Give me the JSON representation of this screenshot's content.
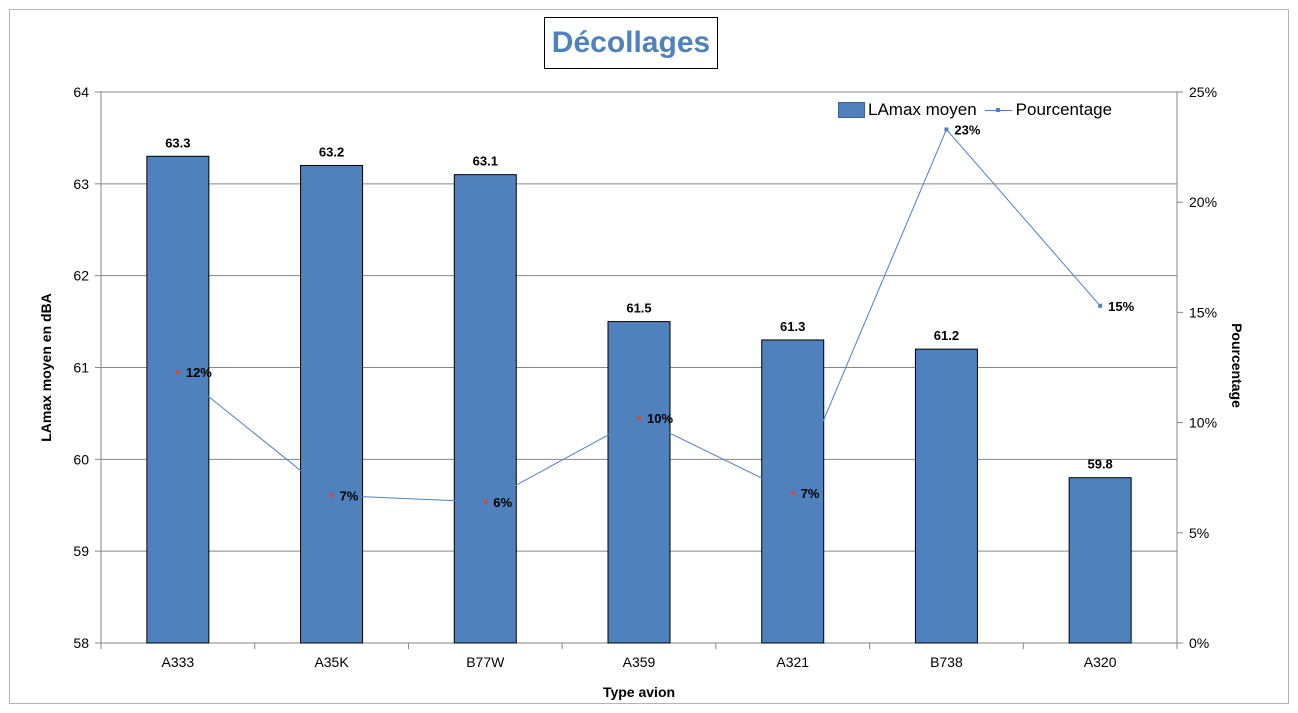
{
  "chart_data": {
    "type": "bar",
    "title": "Décollages",
    "xlabel": "Type avion",
    "ylabel": "LAmax moyen en dBA",
    "y2label": "Pourcentage",
    "categories": [
      "A333",
      "A35K",
      "B77W",
      "A359",
      "A321",
      "B738",
      "A320"
    ],
    "ylim": [
      58,
      64
    ],
    "yticks": [
      "58",
      "59",
      "60",
      "61",
      "62",
      "63",
      "64"
    ],
    "y2lim": [
      0,
      25
    ],
    "y2ticks": [
      "0%",
      "5%",
      "10%",
      "15%",
      "20%",
      "25%"
    ],
    "grid": true,
    "legend_position": "top-right",
    "series": [
      {
        "name": "LAmax moyen",
        "type": "bar",
        "axis": "left",
        "color": "#4f81bd",
        "values": [
          63.3,
          63.2,
          63.1,
          61.5,
          61.3,
          61.2,
          59.8
        ],
        "labels": [
          "63.3",
          "63.2",
          "63.1",
          "61.5",
          "61.3",
          "61.2",
          "59.8"
        ]
      },
      {
        "name": "Pourcentage",
        "type": "line",
        "axis": "right",
        "color": "#4f81bd",
        "values": [
          12.3,
          6.7,
          6.4,
          10.2,
          6.8,
          23.3,
          15.3
        ],
        "labels": [
          "12%",
          "7%",
          "6%",
          "10%",
          "7%",
          "23%",
          "15%"
        ]
      }
    ]
  }
}
